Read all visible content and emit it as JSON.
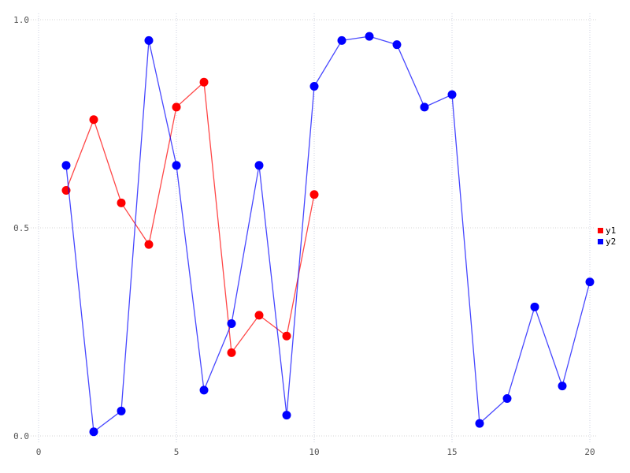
{
  "chart_data": {
    "type": "line",
    "title": "",
    "xlabel": "",
    "ylabel": "",
    "xlim": [
      0,
      20
    ],
    "ylim": [
      0.0,
      1.0
    ],
    "grid": "dotted",
    "legend_position": "right-outside-middle",
    "x_ticks": [
      {
        "v": 0,
        "label": "0"
      },
      {
        "v": 5,
        "label": "5"
      },
      {
        "v": 10,
        "label": "10"
      },
      {
        "v": 15,
        "label": "15"
      },
      {
        "v": 20,
        "label": "20"
      }
    ],
    "y_ticks": [
      {
        "v": 0.0,
        "label": "0.0"
      },
      {
        "v": 0.5,
        "label": "0.5"
      },
      {
        "v": 1.0,
        "label": "1.0"
      }
    ],
    "series": [
      {
        "name": "y1",
        "color": "#ff0000",
        "marker": "circle",
        "x": [
          1,
          2,
          3,
          4,
          5,
          6,
          7,
          8,
          9,
          10
        ],
        "values": [
          0.59,
          0.76,
          0.56,
          0.46,
          0.79,
          0.85,
          0.2,
          0.29,
          0.24,
          0.58
        ]
      },
      {
        "name": "y2",
        "color": "#0000ff",
        "marker": "circle",
        "x": [
          1,
          2,
          3,
          4,
          5,
          6,
          7,
          8,
          9,
          10,
          11,
          12,
          13,
          14,
          15,
          16,
          17,
          18,
          19,
          20
        ],
        "values": [
          0.65,
          0.01,
          0.06,
          0.95,
          0.65,
          0.11,
          0.27,
          0.65,
          0.05,
          0.84,
          0.95,
          0.96,
          0.94,
          0.79,
          0.82,
          0.03,
          0.09,
          0.31,
          0.12,
          0.37
        ]
      }
    ]
  },
  "colors": {
    "background": "#ffffff",
    "grid_horizontal": "#d6d6d6",
    "grid_vertical": "#ccd0e0",
    "tick_label": "#555555",
    "legend_text": "#000000"
  }
}
